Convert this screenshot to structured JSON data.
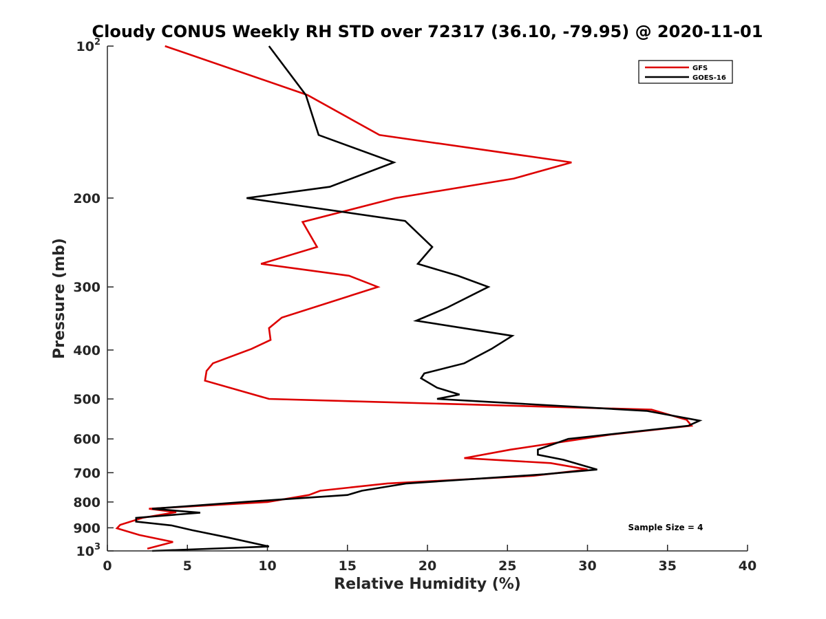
{
  "chart_data": {
    "type": "line",
    "title": "Cloudy CONUS Weekly RH STD over 72317 (36.10, -79.95) @ 2020-11-01",
    "xlabel": "Relative Humidity (%)",
    "ylabel": "Pressure (mb)",
    "xlim": [
      0,
      40
    ],
    "ylim": [
      100,
      1000
    ],
    "y_scale": "log",
    "y_reversed": true,
    "grid": false,
    "legend_position": "top-right",
    "x_ticks": [
      "0",
      "5",
      "10",
      "15",
      "20",
      "25",
      "30",
      "35",
      "40"
    ],
    "x_tick_values": [
      0,
      5,
      10,
      15,
      20,
      25,
      30,
      35,
      40
    ],
    "y_ticks": [
      {
        "value": 100,
        "label": "10",
        "exp": "2"
      },
      {
        "value": 200,
        "label": "200",
        "exp": ""
      },
      {
        "value": 300,
        "label": "300",
        "exp": ""
      },
      {
        "value": 400,
        "label": "400",
        "exp": ""
      },
      {
        "value": 500,
        "label": "500",
        "exp": ""
      },
      {
        "value": 600,
        "label": "600",
        "exp": ""
      },
      {
        "value": 700,
        "label": "700",
        "exp": ""
      },
      {
        "value": 800,
        "label": "800",
        "exp": ""
      },
      {
        "value": 900,
        "label": "900",
        "exp": ""
      },
      {
        "value": 1000,
        "label": "10",
        "exp": "3"
      }
    ],
    "series": [
      {
        "name": "GFS",
        "color": "#dd0000",
        "points": [
          [
            3.6,
            100
          ],
          [
            12.5,
            125
          ],
          [
            17,
            150
          ],
          [
            29,
            170
          ],
          [
            25.4,
            183
          ],
          [
            18,
            200
          ],
          [
            12.2,
            223
          ],
          [
            13.1,
            250
          ],
          [
            9.6,
            270
          ],
          [
            15.1,
            285
          ],
          [
            16.9,
            300
          ],
          [
            10.9,
            345
          ],
          [
            10.1,
            362
          ],
          [
            10.2,
            382
          ],
          [
            9,
            398
          ],
          [
            6.6,
            425
          ],
          [
            6.2,
            440
          ],
          [
            6.1,
            460
          ],
          [
            10.1,
            500
          ],
          [
            34,
            525
          ],
          [
            36.2,
            550
          ],
          [
            36.5,
            565
          ],
          [
            31.5,
            588
          ],
          [
            25.2,
            630
          ],
          [
            22.3,
            655
          ],
          [
            27.7,
            670
          ],
          [
            30,
            690
          ],
          [
            26.6,
            710
          ],
          [
            17.5,
            735
          ],
          [
            13.3,
            760
          ],
          [
            12.6,
            775
          ],
          [
            10,
            800
          ],
          [
            2.6,
            825
          ],
          [
            4.3,
            838
          ],
          [
            2.2,
            860
          ],
          [
            0.8,
            888
          ],
          [
            0.6,
            902
          ],
          [
            2,
            930
          ],
          [
            4.1,
            960
          ],
          [
            2.5,
            990
          ]
        ]
      },
      {
        "name": "GOES-16",
        "color": "#000000",
        "points": [
          [
            10.1,
            100
          ],
          [
            12.4,
            125
          ],
          [
            13.2,
            150
          ],
          [
            17.9,
            170
          ],
          [
            13.9,
            190
          ],
          [
            8.7,
            200
          ],
          [
            18.6,
            222
          ],
          [
            20.3,
            250
          ],
          [
            19.4,
            270
          ],
          [
            21.9,
            285
          ],
          [
            23.8,
            300
          ],
          [
            21.2,
            330
          ],
          [
            19.3,
            350
          ],
          [
            25.3,
            375
          ],
          [
            24,
            398
          ],
          [
            22.3,
            425
          ],
          [
            19.8,
            445
          ],
          [
            19.6,
            455
          ],
          [
            20.6,
            475
          ],
          [
            22,
            490
          ],
          [
            20.6,
            500
          ],
          [
            33.7,
            528
          ],
          [
            37,
            552
          ],
          [
            36.3,
            565
          ],
          [
            28.8,
            600
          ],
          [
            26.9,
            630
          ],
          [
            26.9,
            645
          ],
          [
            28.5,
            660
          ],
          [
            30.6,
            690
          ],
          [
            27.3,
            705
          ],
          [
            18.7,
            735
          ],
          [
            15.9,
            760
          ],
          [
            15,
            775
          ],
          [
            8.5,
            800
          ],
          [
            2.8,
            825
          ],
          [
            5.8,
            840
          ],
          [
            1.8,
            860
          ],
          [
            1.8,
            875
          ],
          [
            4,
            890
          ],
          [
            5.3,
            910
          ],
          [
            7.5,
            940
          ],
          [
            10.1,
            980
          ],
          [
            2.8,
            1000
          ]
        ]
      }
    ],
    "annotation": "Sample Size = 4"
  }
}
